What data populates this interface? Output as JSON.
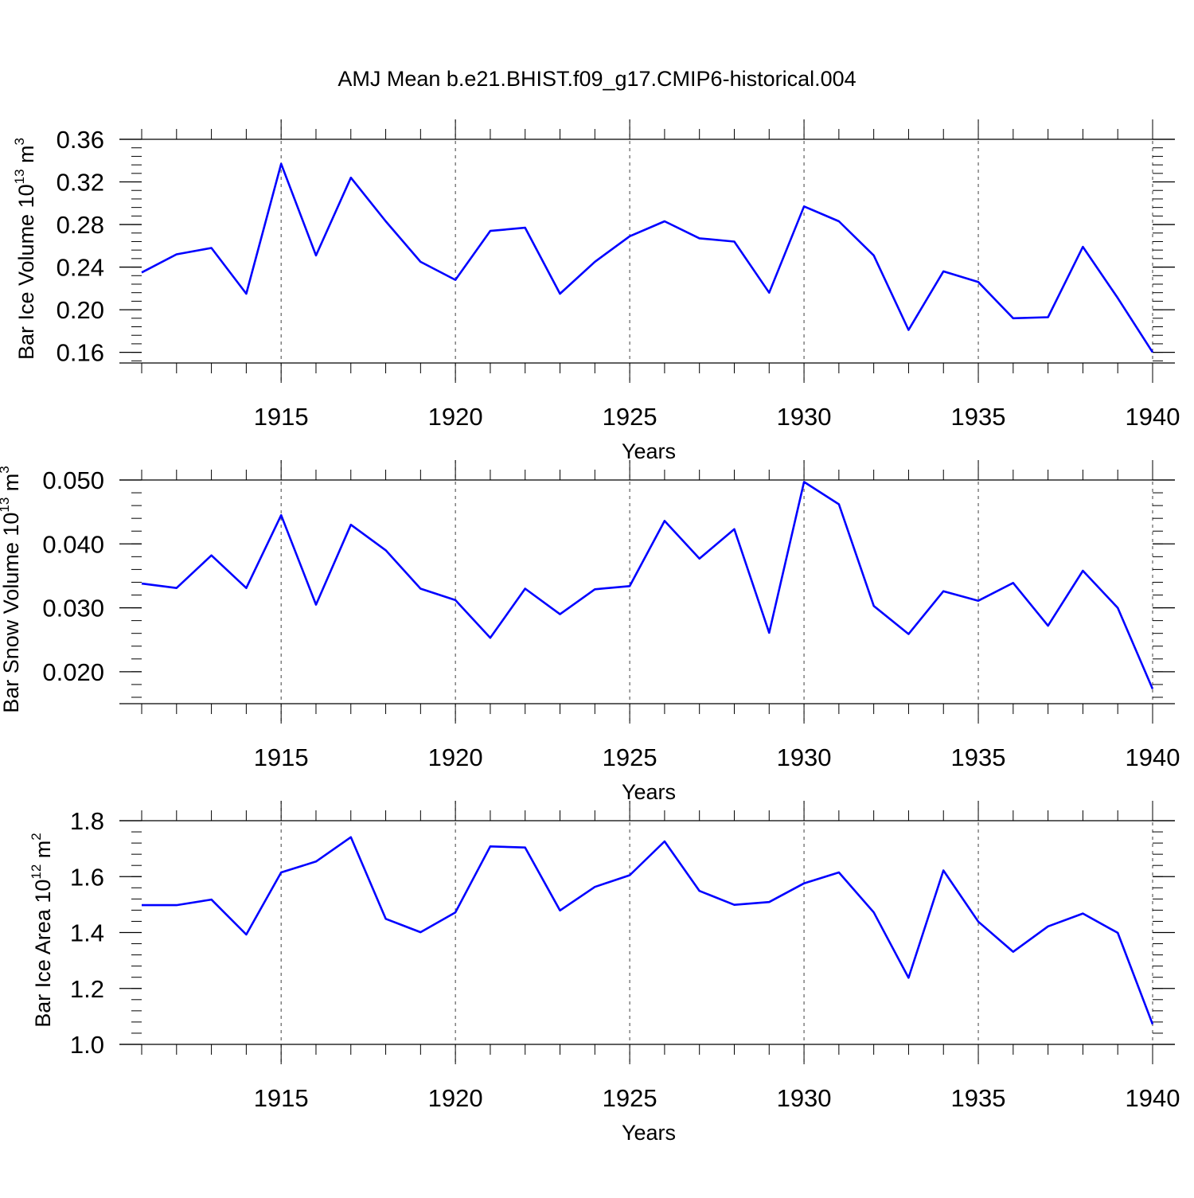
{
  "title": "AMJ Mean b.e21.BHIST.f09_g17.CMIP6-historical.004",
  "chart_data": [
    {
      "type": "line",
      "ylabel": "Bar Ice Volume 10",
      "ylabel_exp": "13",
      "ylabel_unit": "m",
      "ylabel_unit_exp": "3",
      "xlabel": "Years",
      "line_color": "#0000ff",
      "xlim": [
        1911,
        1940
      ],
      "ylim": [
        0.15,
        0.36
      ],
      "yticks": [
        0.16,
        0.2,
        0.24,
        0.28,
        0.32,
        0.36
      ],
      "ytick_labels": [
        "0.16",
        "0.20",
        "0.24",
        "0.28",
        "0.32",
        "0.36"
      ],
      "xticks": [
        1915,
        1920,
        1925,
        1930,
        1935,
        1940
      ],
      "xtick_labels": [
        "1915",
        "1920",
        "1925",
        "1930",
        "1935",
        "1940"
      ],
      "x": [
        1911,
        1912,
        1913,
        1914,
        1915,
        1916,
        1917,
        1918,
        1919,
        1920,
        1921,
        1922,
        1923,
        1924,
        1925,
        1926,
        1927,
        1928,
        1929,
        1930,
        1931,
        1932,
        1933,
        1934,
        1935,
        1936,
        1937,
        1938,
        1939,
        1940
      ],
      "values": [
        0.235,
        0.252,
        0.258,
        0.215,
        0.337,
        0.251,
        0.324,
        0.283,
        0.245,
        0.228,
        0.274,
        0.277,
        0.215,
        0.245,
        0.269,
        0.283,
        0.267,
        0.264,
        0.216,
        0.297,
        0.283,
        0.251,
        0.181,
        0.236,
        0.226,
        0.192,
        0.193,
        0.259,
        0.211,
        0.16
      ]
    },
    {
      "type": "line",
      "ylabel": "Bar Snow Volume 10",
      "ylabel_exp": "13",
      "ylabel_unit": "m",
      "ylabel_unit_exp": "3",
      "xlabel": "Years",
      "line_color": "#0000ff",
      "xlim": [
        1911,
        1940
      ],
      "ylim": [
        0.015,
        0.05
      ],
      "yticks": [
        0.02,
        0.03,
        0.04,
        0.05
      ],
      "ytick_labels": [
        "0.020",
        "0.030",
        "0.040",
        "0.050"
      ],
      "xticks": [
        1915,
        1920,
        1925,
        1930,
        1935,
        1940
      ],
      "xtick_labels": [
        "1915",
        "1920",
        "1925",
        "1930",
        "1935",
        "1940"
      ],
      "x": [
        1911,
        1912,
        1913,
        1914,
        1915,
        1916,
        1917,
        1918,
        1919,
        1920,
        1921,
        1922,
        1923,
        1924,
        1925,
        1926,
        1927,
        1928,
        1929,
        1930,
        1931,
        1932,
        1933,
        1934,
        1935,
        1936,
        1937,
        1938,
        1939,
        1940
      ],
      "values": [
        0.0338,
        0.0331,
        0.0382,
        0.0331,
        0.0445,
        0.0305,
        0.043,
        0.039,
        0.033,
        0.0312,
        0.0253,
        0.033,
        0.029,
        0.0329,
        0.0334,
        0.0436,
        0.0377,
        0.0423,
        0.0261,
        0.0497,
        0.0462,
        0.0303,
        0.0259,
        0.0326,
        0.0311,
        0.0339,
        0.0272,
        0.0358,
        0.03,
        0.0173
      ]
    },
    {
      "type": "line",
      "ylabel": "Bar Ice Area 10",
      "ylabel_exp": "12",
      "ylabel_unit": "m",
      "ylabel_unit_exp": "2",
      "xlabel": "Years",
      "line_color": "#0000ff",
      "xlim": [
        1911,
        1940
      ],
      "ylim": [
        1.0,
        1.8
      ],
      "yticks": [
        1.0,
        1.2,
        1.4,
        1.6,
        1.8
      ],
      "ytick_labels": [
        "1.0",
        "1.2",
        "1.4",
        "1.6",
        "1.8"
      ],
      "xticks": [
        1915,
        1920,
        1925,
        1930,
        1935,
        1940
      ],
      "xtick_labels": [
        "1915",
        "1920",
        "1925",
        "1930",
        "1935",
        "1940"
      ],
      "x": [
        1911,
        1912,
        1913,
        1914,
        1915,
        1916,
        1917,
        1918,
        1919,
        1920,
        1921,
        1922,
        1923,
        1924,
        1925,
        1926,
        1927,
        1928,
        1929,
        1930,
        1931,
        1932,
        1933,
        1934,
        1935,
        1936,
        1937,
        1938,
        1939,
        1940
      ],
      "values": [
        1.498,
        1.498,
        1.518,
        1.393,
        1.615,
        1.654,
        1.741,
        1.449,
        1.401,
        1.472,
        1.708,
        1.704,
        1.479,
        1.563,
        1.605,
        1.726,
        1.549,
        1.499,
        1.509,
        1.576,
        1.615,
        1.472,
        1.238,
        1.622,
        1.439,
        1.331,
        1.422,
        1.468,
        1.399,
        1.072
      ]
    }
  ]
}
